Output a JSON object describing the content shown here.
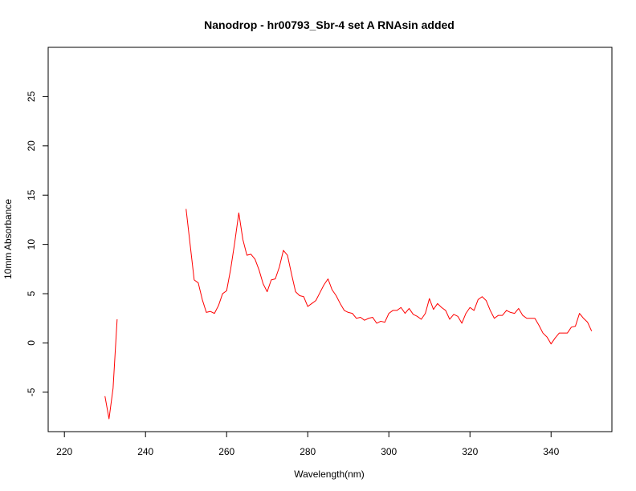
{
  "chart_data": {
    "type": "line",
    "title": "Nanodrop - hr00793_Sbr-4 set A RNAsin added",
    "xlabel": "Wavelength(nm)",
    "ylabel": "10mm Absorbance",
    "xlim": [
      216,
      355
    ],
    "ylim": [
      -9,
      30
    ],
    "xticks": [
      220,
      240,
      260,
      280,
      300,
      320,
      340
    ],
    "yticks": [
      -5,
      0,
      5,
      10,
      15,
      20,
      25
    ],
    "grid": false,
    "legend": "none",
    "color": "#ff0000",
    "series": [
      {
        "segments": [
          [
            [
              230,
              -5.4
            ],
            [
              231,
              -7.7
            ],
            [
              232,
              -4.6
            ],
            [
              233,
              2.4
            ]
          ],
          [
            [
              250,
              13.6
            ],
            [
              251,
              10.0
            ],
            [
              252,
              6.4
            ],
            [
              253,
              6.1
            ],
            [
              254,
              4.4
            ],
            [
              255,
              3.1
            ],
            [
              256,
              3.2
            ],
            [
              257,
              3.0
            ],
            [
              258,
              3.8
            ],
            [
              259,
              5.0
            ],
            [
              260,
              5.3
            ],
            [
              261,
              7.5
            ],
            [
              262,
              10.2
            ],
            [
              263,
              13.2
            ],
            [
              264,
              10.5
            ],
            [
              265,
              8.9
            ],
            [
              266,
              9.0
            ],
            [
              267,
              8.5
            ],
            [
              268,
              7.4
            ],
            [
              269,
              6.0
            ],
            [
              270,
              5.2
            ],
            [
              271,
              6.4
            ],
            [
              272,
              6.5
            ],
            [
              273,
              7.7
            ],
            [
              274,
              9.4
            ],
            [
              275,
              8.9
            ],
            [
              276,
              7.0
            ],
            [
              277,
              5.2
            ],
            [
              278,
              4.8
            ],
            [
              279,
              4.7
            ],
            [
              280,
              3.7
            ],
            [
              281,
              4.0
            ],
            [
              282,
              4.3
            ],
            [
              283,
              5.1
            ],
            [
              284,
              5.9
            ],
            [
              285,
              6.5
            ],
            [
              286,
              5.4
            ],
            [
              287,
              4.8
            ],
            [
              288,
              4.0
            ],
            [
              289,
              3.3
            ],
            [
              290,
              3.1
            ],
            [
              291,
              3.0
            ],
            [
              292,
              2.5
            ],
            [
              293,
              2.6
            ],
            [
              294,
              2.3
            ],
            [
              295,
              2.5
            ],
            [
              296,
              2.6
            ],
            [
              297,
              2.0
            ],
            [
              298,
              2.2
            ],
            [
              299,
              2.1
            ],
            [
              300,
              3.0
            ],
            [
              301,
              3.3
            ],
            [
              302,
              3.3
            ],
            [
              303,
              3.6
            ],
            [
              304,
              3.0
            ],
            [
              305,
              3.5
            ],
            [
              306,
              2.9
            ],
            [
              307,
              2.7
            ],
            [
              308,
              2.4
            ],
            [
              309,
              3.0
            ],
            [
              310,
              4.5
            ],
            [
              311,
              3.4
            ],
            [
              312,
              4.0
            ],
            [
              313,
              3.6
            ],
            [
              314,
              3.3
            ],
            [
              315,
              2.4
            ],
            [
              316,
              2.9
            ],
            [
              317,
              2.7
            ],
            [
              318,
              2.0
            ],
            [
              319,
              3.0
            ],
            [
              320,
              3.6
            ],
            [
              321,
              3.3
            ],
            [
              322,
              4.4
            ],
            [
              323,
              4.7
            ],
            [
              324,
              4.3
            ],
            [
              325,
              3.3
            ],
            [
              326,
              2.5
            ],
            [
              327,
              2.8
            ],
            [
              328,
              2.8
            ],
            [
              329,
              3.3
            ],
            [
              330,
              3.1
            ],
            [
              331,
              3.0
            ],
            [
              332,
              3.5
            ],
            [
              333,
              2.8
            ],
            [
              334,
              2.5
            ],
            [
              335,
              2.5
            ],
            [
              336,
              2.5
            ],
            [
              337,
              1.8
            ],
            [
              338,
              1.0
            ],
            [
              339,
              0.6
            ],
            [
              340,
              -0.1
            ],
            [
              341,
              0.5
            ],
            [
              342,
              1.0
            ],
            [
              343,
              1.0
            ],
            [
              344,
              1.0
            ],
            [
              345,
              1.6
            ],
            [
              346,
              1.7
            ],
            [
              347,
              3.0
            ],
            [
              348,
              2.5
            ],
            [
              349,
              2.1
            ],
            [
              350,
              1.2
            ]
          ]
        ]
      }
    ]
  }
}
